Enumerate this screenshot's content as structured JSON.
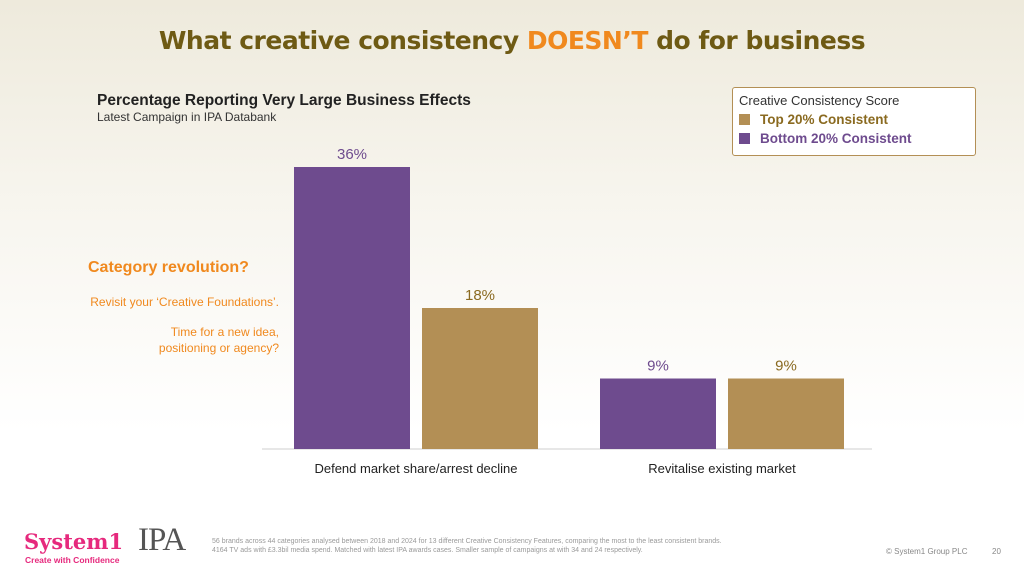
{
  "header": {
    "title_before": "What creative consistency ",
    "title_highlight": "DOESN’T",
    "title_after": " do for business"
  },
  "chart_data": {
    "type": "bar",
    "title": "Percentage Reporting Very Large Business Effects",
    "subtitle": "Latest Campaign in IPA Databank",
    "categories": [
      "Defend market share/arrest decline",
      "Revitalise existing market"
    ],
    "series": [
      {
        "name": "Bottom 20% Consistent",
        "color": "#6e4b8e",
        "values": [
          36,
          9
        ],
        "labels": [
          "36%",
          "9%"
        ]
      },
      {
        "name": "Top 20% Consistent",
        "color": "#b38f55",
        "values": [
          18,
          9
        ],
        "labels": [
          "18%",
          "9%"
        ]
      }
    ],
    "ylim": [
      0,
      36
    ],
    "legend_title": "Creative Consistency Score",
    "legend_order": [
      "Top 20% Consistent",
      "Bottom 20% Consistent"
    ],
    "legend_position": "top-right",
    "grid": false
  },
  "colors": {
    "title": "#6e5a14",
    "highlight": "#f0891e",
    "purple": "#6e4b8e",
    "gold": "#b38f55",
    "top_label_color": "#8a6a20",
    "bottom_label_color": "#6e4b8e"
  },
  "sidebar": {
    "heading": "Category revolution?",
    "line1": "Revisit your ‘Creative Foundations’.",
    "line2a": "Time for a new idea,",
    "line2b": "positioning or agency?"
  },
  "footer": {
    "note_line1": "56 brands across 44 categories analysed between 2018 and 2024 for 13 different Creative Consistency Features, comparing the most to the least consistent brands.",
    "note_line2": "4164 TV ads with £3.3bil media spend. Matched with latest IPA awards cases. Smaller sample of campaigns at with 34 and 24 respectively.",
    "logo_system1": "System1",
    "logo_system1_tagline": "Create with Confidence",
    "logo_ipa": "IPA",
    "copyright": "© System1 Group PLC",
    "page_number": "20"
  }
}
